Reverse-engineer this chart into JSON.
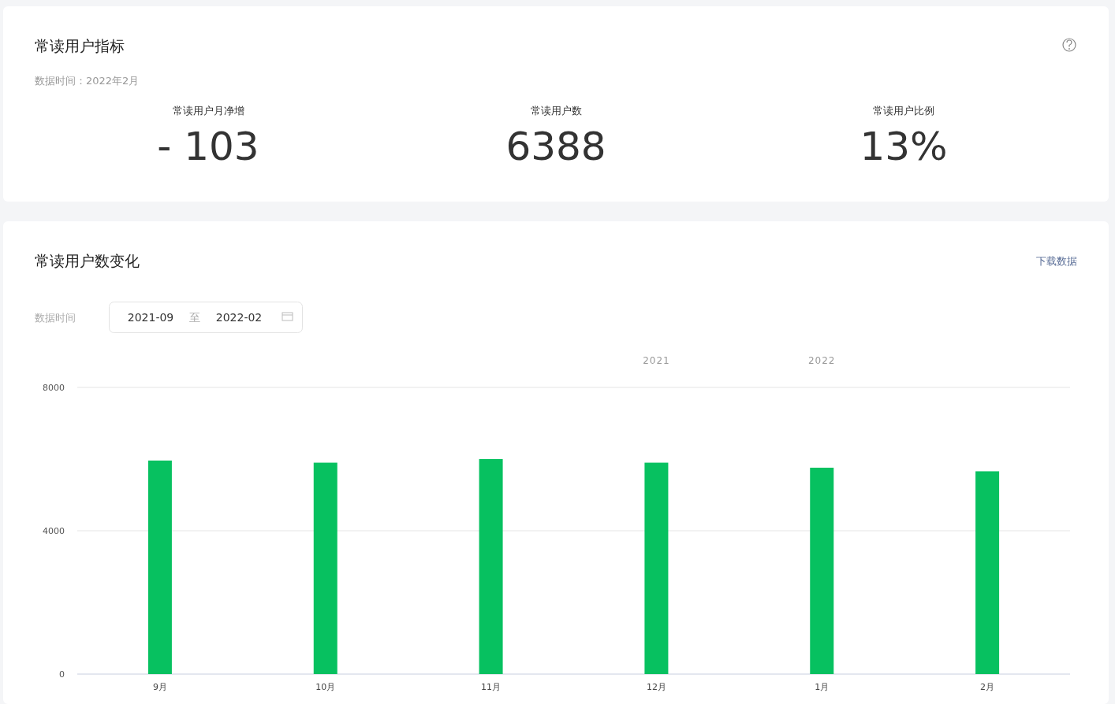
{
  "chart_data": [
    {
      "type": "other",
      "title": "常读用户指标",
      "subtitle": "数据时间：2022年2月",
      "annotations": [
        "常读用户月净增",
        "- 103",
        "常读用户数",
        "6388",
        "常读用户比例",
        "13%"
      ]
    },
    {
      "type": "bar",
      "title": "常读用户数变化",
      "categories": [
        "9月",
        "10月",
        "11月",
        "12月",
        "1月",
        "2月"
      ],
      "values": [
        5960,
        5900,
        6000,
        5900,
        5760,
        5660
      ],
      "color": "#07c160",
      "ylim": [
        0,
        8000
      ],
      "yticks": [
        0,
        4000,
        8000
      ],
      "grid": "y",
      "annotations": [
        "下载数据",
        "数据时间",
        "2021-09",
        "至",
        "2022-02",
        "2021",
        "2022"
      ]
    }
  ]
}
